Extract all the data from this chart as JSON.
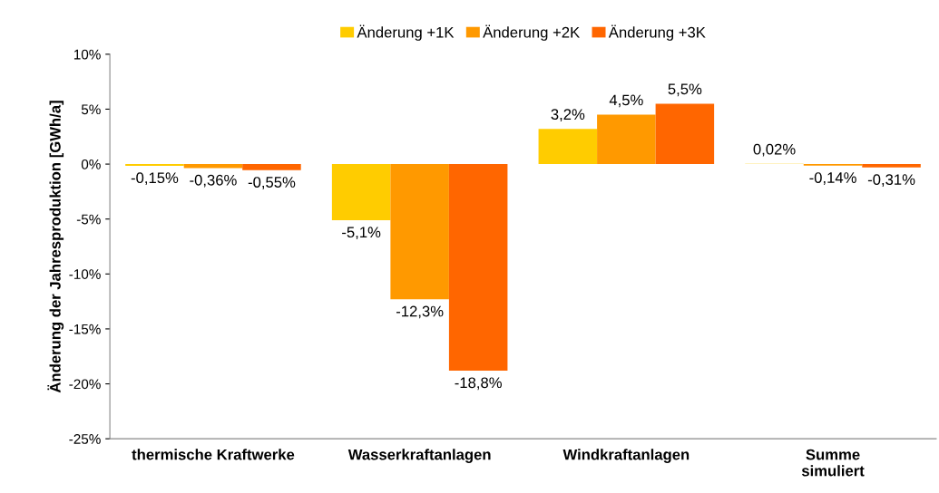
{
  "chart_data": {
    "type": "bar",
    "ylabel": "Änderung der Jahresproduktion [GWh/a]",
    "categories": [
      "thermische Kraftwerke",
      "Wasserkraftanlagen",
      "Windkraftanlagen",
      "Summe\nsimuliert"
    ],
    "series": [
      {
        "name": "Änderung +1K",
        "color": "#ffcc00",
        "values": [
          -0.15,
          -5.1,
          3.2,
          0.02
        ],
        "value_labels": [
          "-0,15%",
          "-5,1%",
          "3,2%",
          "0,02%"
        ]
      },
      {
        "name": "Änderung +2K",
        "color": "#ff9900",
        "values": [
          -0.36,
          -12.3,
          4.5,
          -0.14
        ],
        "value_labels": [
          "-0,36%",
          "-12,3%",
          "4,5%",
          "-0,14%"
        ]
      },
      {
        "name": "Änderung +3K",
        "color": "#ff6600",
        "values": [
          -0.55,
          -18.8,
          5.5,
          -0.31
        ],
        "value_labels": [
          "-0,55%",
          "-18,8%",
          "5,5%",
          "-0,31%"
        ]
      }
    ],
    "ylim": [
      -25,
      10
    ],
    "yticks": [
      {
        "value": -25,
        "label": "-25%"
      },
      {
        "value": -20,
        "label": "-20%"
      },
      {
        "value": -15,
        "label": "-15%"
      },
      {
        "value": -10,
        "label": "-10%"
      },
      {
        "value": -5,
        "label": "-5%"
      },
      {
        "value": 0,
        "label": "0%"
      },
      {
        "value": 5,
        "label": "5%"
      },
      {
        "value": 10,
        "label": "10%"
      }
    ],
    "grid": false,
    "legend": "top"
  }
}
